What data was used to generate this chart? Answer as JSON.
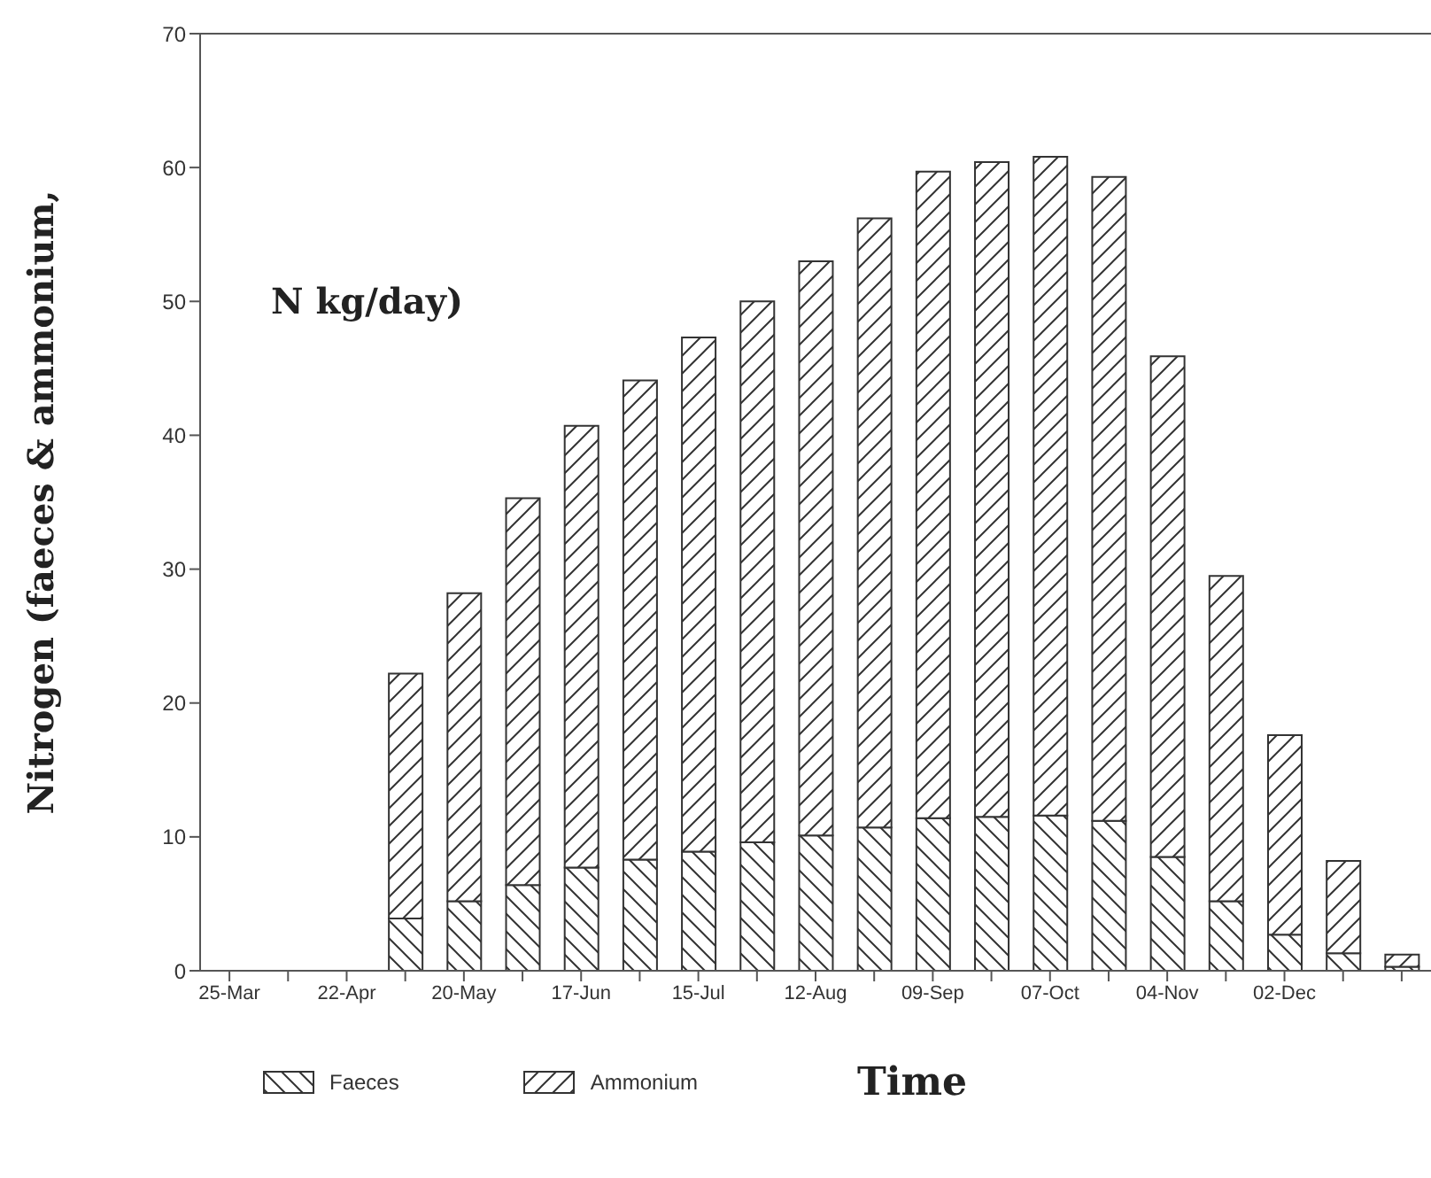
{
  "chart_data": {
    "type": "bar",
    "stacked": true,
    "ylabel": "Nitrogen (faeces & ammonium,",
    "xlabel": "Time",
    "annotations": [
      "N kg/day)"
    ],
    "categories": [
      "25-Mar",
      null,
      "22-Apr",
      null,
      "20-May",
      null,
      "17-Jun",
      null,
      "15-Jul",
      null,
      "12-Aug",
      null,
      "09-Sep",
      null,
      "07-Oct",
      null,
      "04-Nov",
      null,
      "02-Dec",
      null,
      null
    ],
    "series": [
      {
        "name": "Faeces",
        "color": "#333333",
        "values": [
          null,
          null,
          null,
          3.9,
          5.2,
          6.4,
          7.7,
          8.3,
          8.9,
          9.6,
          10.1,
          10.7,
          11.4,
          11.5,
          11.6,
          11.2,
          8.5,
          5.2,
          2.7,
          1.3,
          0.3
        ]
      },
      {
        "name": "Ammonium",
        "color": "#333333",
        "values": [
          null,
          null,
          null,
          18.3,
          23.0,
          28.9,
          33.0,
          35.8,
          38.4,
          40.4,
          42.9,
          45.5,
          48.3,
          48.9,
          49.2,
          48.1,
          37.4,
          24.3,
          14.9,
          6.9,
          0.9
        ]
      }
    ],
    "ylim": [
      0,
      70
    ],
    "yticks": [
      0,
      10,
      20,
      30,
      40,
      50,
      60,
      70
    ],
    "grid": false,
    "legend": "bottom"
  }
}
